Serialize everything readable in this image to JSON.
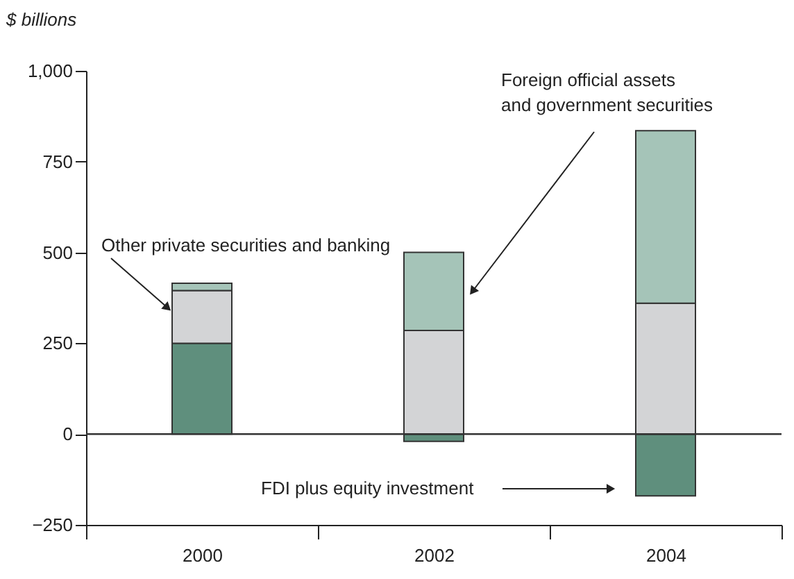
{
  "chart_data": {
    "type": "bar",
    "stacked": true,
    "ylabel": "$ billions",
    "categories": [
      "2000",
      "2002",
      "2004"
    ],
    "series": [
      {
        "name": "FDI plus equity investment",
        "color": "#5f8f7d",
        "values": [
          250,
          -20,
          -170
        ]
      },
      {
        "name": "Other private securities and banking",
        "color": "#d3d4d6",
        "values": [
          145,
          285,
          360
        ]
      },
      {
        "name": "Foreign official assets\nand government securities",
        "color": "#a5c4b8",
        "values": [
          20,
          215,
          475
        ]
      }
    ],
    "ylim": [
      -250,
      1000
    ],
    "yticks": [
      -250,
      0,
      250,
      500,
      750,
      {
        "value": 1000,
        "label": "1,000"
      }
    ],
    "grid": false,
    "legend": false,
    "ref_lines": [
      {
        "axis": "y",
        "value": 0
      }
    ]
  }
}
